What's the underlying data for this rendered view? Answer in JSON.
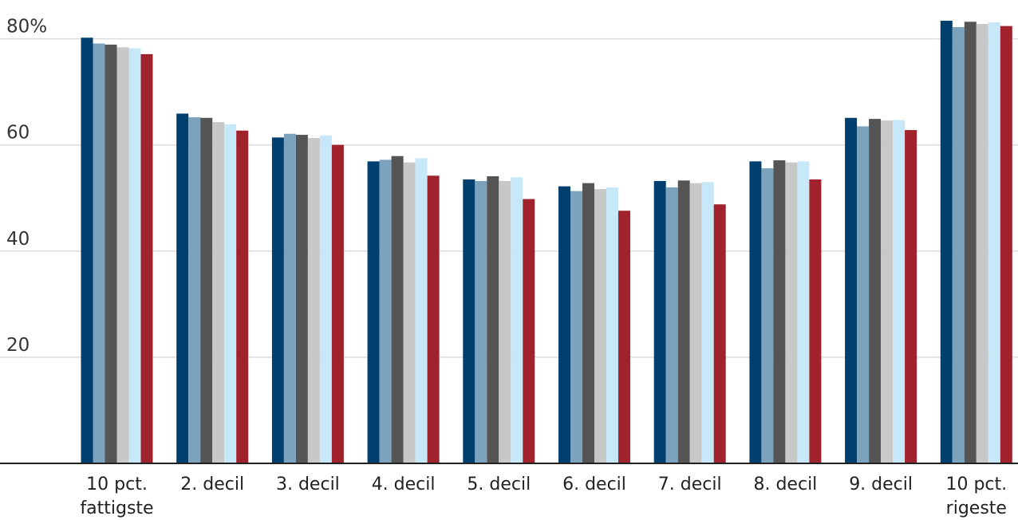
{
  "chart_data": {
    "type": "bar",
    "categories": [
      [
        "10 pct.",
        "fattigste"
      ],
      [
        "2. decil"
      ],
      [
        "3. decil"
      ],
      [
        "4. decil"
      ],
      [
        "5. decil"
      ],
      [
        "6. decil"
      ],
      [
        "7. decil"
      ],
      [
        "8. decil"
      ],
      [
        "9. decil"
      ],
      [
        "10 pct.",
        "rigeste"
      ]
    ],
    "series": [
      {
        "color": "#003f6e",
        "values": [
          80.2,
          65.9,
          61.4,
          56.9,
          53.5,
          52.2,
          53.2,
          56.9,
          65.1,
          83.4
        ]
      },
      {
        "color": "#7ca3bd",
        "values": [
          79.1,
          65.2,
          62.1,
          57.2,
          53.2,
          51.3,
          52.0,
          55.6,
          63.5,
          82.2
        ]
      },
      {
        "color": "#555555",
        "values": [
          78.9,
          65.1,
          61.9,
          57.9,
          54.1,
          52.8,
          53.3,
          57.1,
          64.9,
          83.2
        ]
      },
      {
        "color": "#c8c8c8",
        "values": [
          78.4,
          64.3,
          61.3,
          56.7,
          53.2,
          51.7,
          52.8,
          56.7,
          64.6,
          82.8
        ]
      },
      {
        "color": "#c6e8f8",
        "values": [
          78.2,
          63.9,
          61.8,
          57.5,
          53.9,
          52.0,
          53.0,
          56.9,
          64.7,
          83.1
        ]
      },
      {
        "color": "#a0222c",
        "values": [
          77.1,
          62.7,
          60.0,
          54.2,
          49.8,
          47.6,
          48.8,
          53.5,
          62.8,
          82.4
        ]
      }
    ],
    "yticks": [
      {
        "value": 20,
        "label": "20"
      },
      {
        "value": 40,
        "label": "40"
      },
      {
        "value": 60,
        "label": "60"
      },
      {
        "value": 80,
        "label": "80%"
      }
    ],
    "ylim": [
      0,
      85
    ],
    "grid": true,
    "title": "",
    "xlabel": "",
    "ylabel": ""
  }
}
